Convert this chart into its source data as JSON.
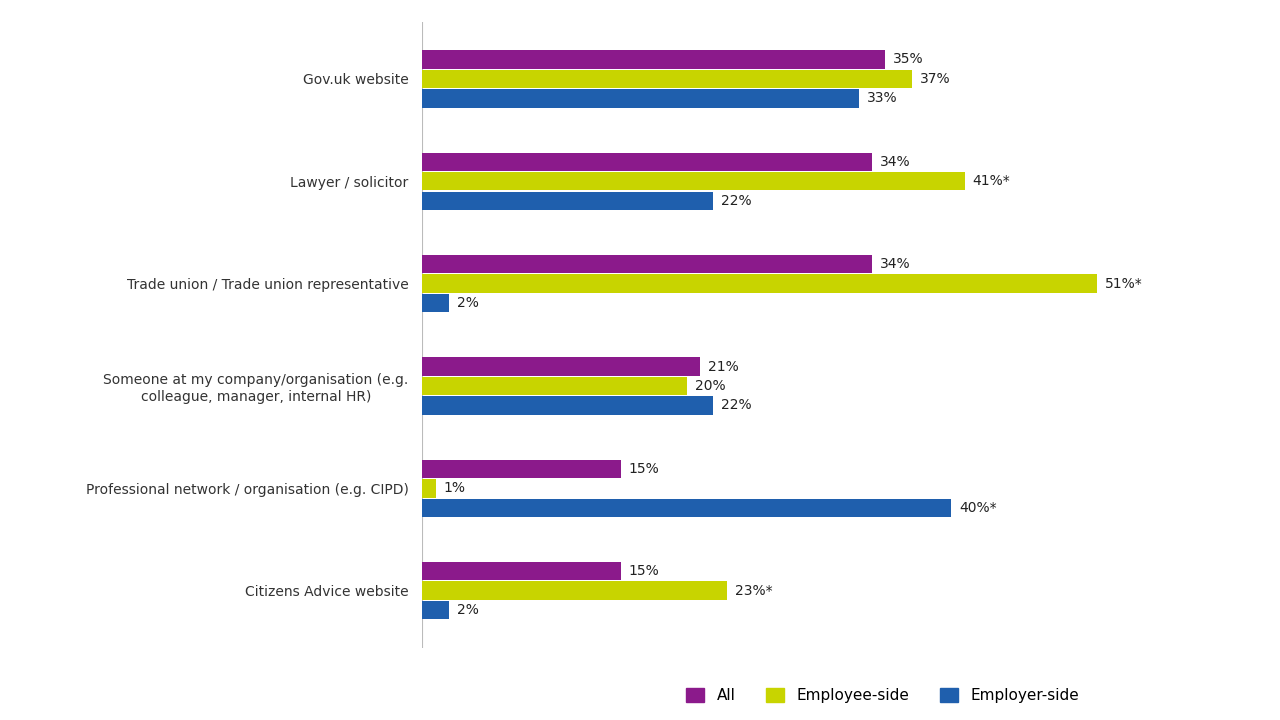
{
  "categories": [
    "Gov.uk website",
    "Lawyer / solicitor",
    "Trade union / Trade union representative",
    "Someone at my company/organisation (e.g.\ncolleague, manager, internal HR)",
    "Professional network / organisation (e.g. CIPD)",
    "Citizens Advice website"
  ],
  "series": {
    "All": [
      35,
      34,
      34,
      21,
      15,
      15
    ],
    "Employee-side": [
      37,
      41,
      51,
      20,
      1,
      23
    ],
    "Employer-side": [
      33,
      22,
      2,
      22,
      40,
      2
    ]
  },
  "labels": {
    "All": [
      "35%",
      "34%",
      "34%",
      "21%",
      "15%",
      "15%"
    ],
    "Employee-side": [
      "37%",
      "41%*",
      "51%*",
      "20%",
      "1%",
      "23%*"
    ],
    "Employer-side": [
      "33%",
      "22%",
      "2%",
      "22%",
      "40%*",
      "2%"
    ]
  },
  "colors": {
    "All": "#8B1A8B",
    "Employee-side": "#C8D400",
    "Employer-side": "#1F5FAD"
  },
  "bar_height": 0.18,
  "figsize": [
    12.8,
    7.2
  ],
  "dpi": 100,
  "xlim": [
    0,
    60
  ],
  "legend_labels": [
    "All",
    "Employee-side",
    "Employer-side"
  ],
  "background_color": "#ffffff",
  "label_fontsize": 10,
  "tick_fontsize": 10,
  "legend_fontsize": 11
}
